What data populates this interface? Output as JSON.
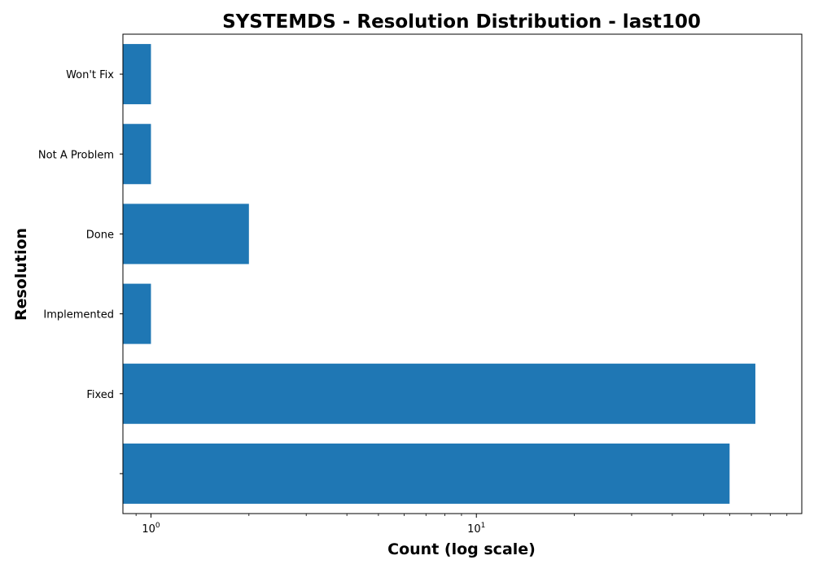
{
  "chart_data": {
    "type": "bar",
    "orientation": "horizontal",
    "title": "SYSTEMDS - Resolution Distribution - last100",
    "xlabel": "Count (log scale)",
    "ylabel": "Resolution",
    "x_scale": "log",
    "xlim": [
      0.82,
      100
    ],
    "x_ticks": [
      {
        "value": 1,
        "base": "10",
        "exponent": "0"
      },
      {
        "value": 10,
        "base": "10",
        "exponent": "1"
      }
    ],
    "categories": [
      "",
      "Fixed",
      "Implemented",
      "Done",
      "Not A Problem",
      "Won't Fix"
    ],
    "values": [
      60,
      72,
      1,
      2,
      1,
      1
    ],
    "grid": false,
    "legend": "none",
    "bar_color": "#1f77b4"
  }
}
